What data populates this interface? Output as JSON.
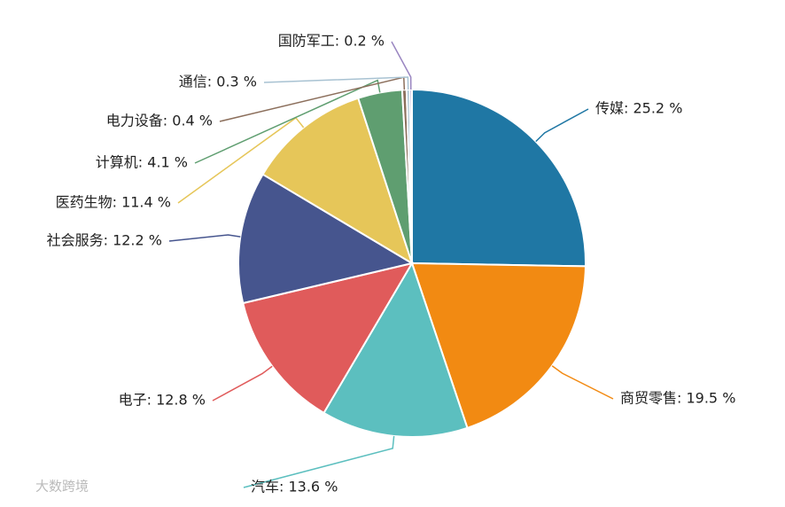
{
  "chart_data": {
    "type": "pie",
    "values": [
      25.2,
      19.5,
      13.6,
      12.8,
      12.2,
      11.4,
      4.1,
      0.4,
      0.3,
      0.2
    ],
    "value_labels": [
      "传媒: 25.2 %",
      "商贸零售: 19.5 %",
      "汽车: 13.6 %",
      "电子: 12.8 %",
      "社会服务: 12.2 %",
      "医药生物: 11.4 %",
      "计算机: 4.1 %",
      "电力设备: 0.4 %",
      "通信: 0.3 %",
      "国防军工: 0.2 %"
    ],
    "colors": [
      "#1f77a4",
      "#f28a12",
      "#5cbfbf",
      "#e05b5b",
      "#46558e",
      "#e6c659",
      "#5f9e70",
      "#8c6f5c",
      "#a8c2d2",
      "#9a86c1"
    ]
  },
  "watermark": "大数跨境"
}
